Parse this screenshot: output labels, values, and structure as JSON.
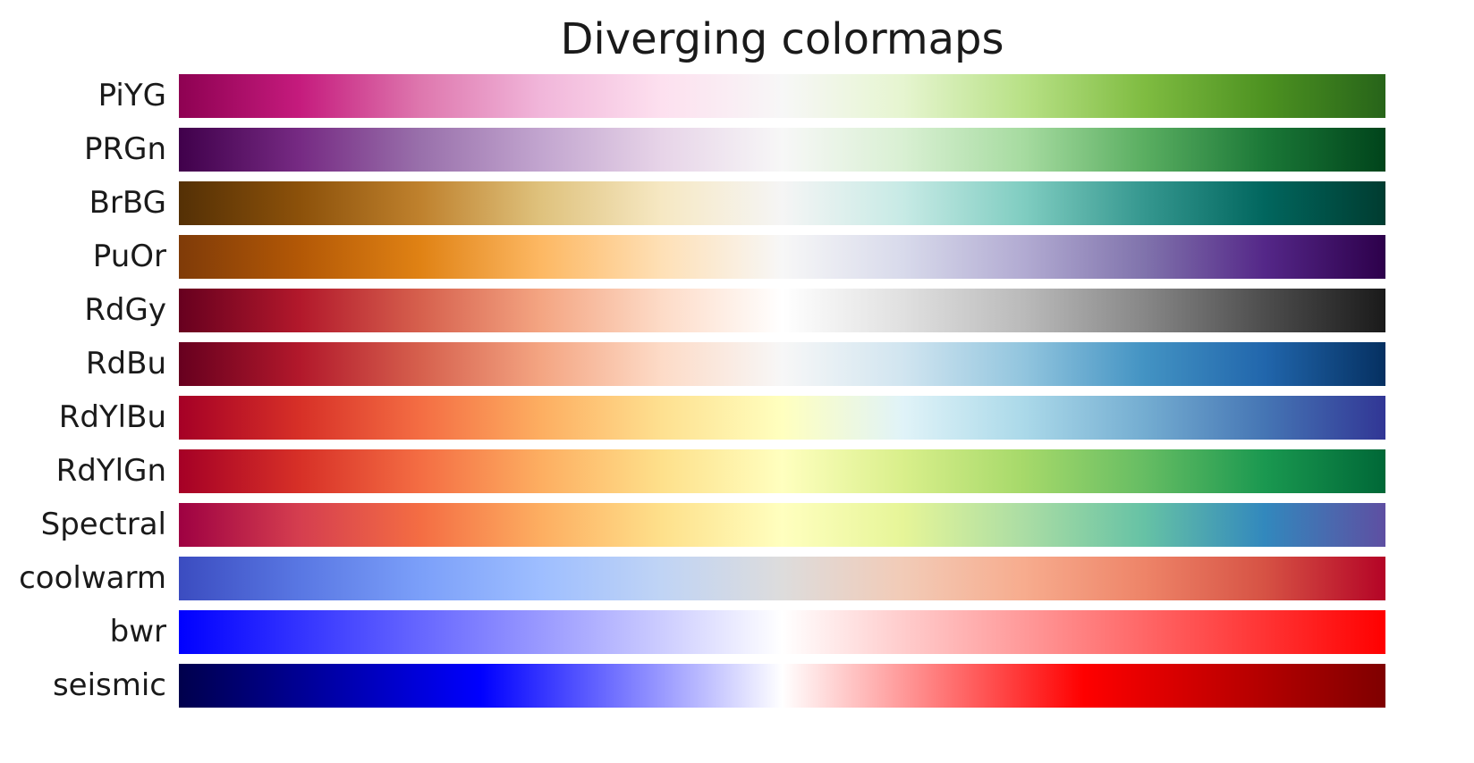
{
  "chart_data": {
    "type": "heatmap",
    "title": "Diverging colormaps",
    "xlabel": "",
    "ylabel": "",
    "colormaps": [
      {
        "name": "PiYG",
        "stops": [
          "#8e0152",
          "#c51b7d",
          "#de77ae",
          "#f1b6da",
          "#fde0ef",
          "#f7f7f7",
          "#e6f5d0",
          "#b8e186",
          "#7fbc41",
          "#4d9221",
          "#276419"
        ]
      },
      {
        "name": "PRGn",
        "stops": [
          "#40004b",
          "#762a83",
          "#9970ab",
          "#c2a5cf",
          "#e7d4e8",
          "#f7f7f7",
          "#d9f0d3",
          "#a6dba0",
          "#5aae61",
          "#1b7837",
          "#00441b"
        ]
      },
      {
        "name": "BrBG",
        "stops": [
          "#543005",
          "#8c510a",
          "#bf812d",
          "#dfc27d",
          "#f6e8c3",
          "#f5f5f5",
          "#c7eae5",
          "#80cdc1",
          "#35978f",
          "#01665e",
          "#003c30"
        ]
      },
      {
        "name": "PuOr",
        "stops": [
          "#7f3b08",
          "#b35806",
          "#e08214",
          "#fdb863",
          "#fee0b6",
          "#f7f7f7",
          "#d8daeb",
          "#b2abd2",
          "#8073ac",
          "#542788",
          "#2d004b"
        ]
      },
      {
        "name": "RdGy",
        "stops": [
          "#67001f",
          "#b2182b",
          "#d6604d",
          "#f4a582",
          "#fddbc7",
          "#ffffff",
          "#e0e0e0",
          "#bababa",
          "#878787",
          "#4d4d4d",
          "#1a1a1a"
        ]
      },
      {
        "name": "RdBu",
        "stops": [
          "#67001f",
          "#b2182b",
          "#d6604d",
          "#f4a582",
          "#fddbc7",
          "#f7f7f7",
          "#d1e5f0",
          "#92c5de",
          "#4393c3",
          "#2166ac",
          "#053061"
        ]
      },
      {
        "name": "RdYlBu",
        "stops": [
          "#a50026",
          "#d73027",
          "#f46d43",
          "#fdae61",
          "#fee090",
          "#ffffbf",
          "#e0f3f8",
          "#abd9e9",
          "#74add1",
          "#4575b4",
          "#313695"
        ]
      },
      {
        "name": "RdYlGn",
        "stops": [
          "#a50026",
          "#d73027",
          "#f46d43",
          "#fdae61",
          "#fee08b",
          "#ffffbf",
          "#d9ef8b",
          "#a6d96a",
          "#66bd63",
          "#1a9850",
          "#006837"
        ]
      },
      {
        "name": "Spectral",
        "stops": [
          "#9e0142",
          "#d53e4f",
          "#f46d43",
          "#fdae61",
          "#fee08b",
          "#ffffbf",
          "#e6f598",
          "#abdda4",
          "#66c2a5",
          "#3288bd",
          "#5e4fa2"
        ]
      },
      {
        "name": "coolwarm",
        "stops": [
          "#3b4cc0",
          "#5977e3",
          "#7b9ff9",
          "#9ebeff",
          "#c0d4f5",
          "#dddcdc",
          "#f2cbb7",
          "#f7ac8e",
          "#ee8468",
          "#d65244",
          "#b40426"
        ]
      },
      {
        "name": "bwr",
        "stops": [
          "#0000ff",
          "#8080ff",
          "#ffffff",
          "#ff8080",
          "#ff0000"
        ]
      },
      {
        "name": "seismic",
        "stops": [
          "#00004c",
          "#0000ff",
          "#ffffff",
          "#ff0000",
          "#7f0000"
        ]
      }
    ]
  }
}
